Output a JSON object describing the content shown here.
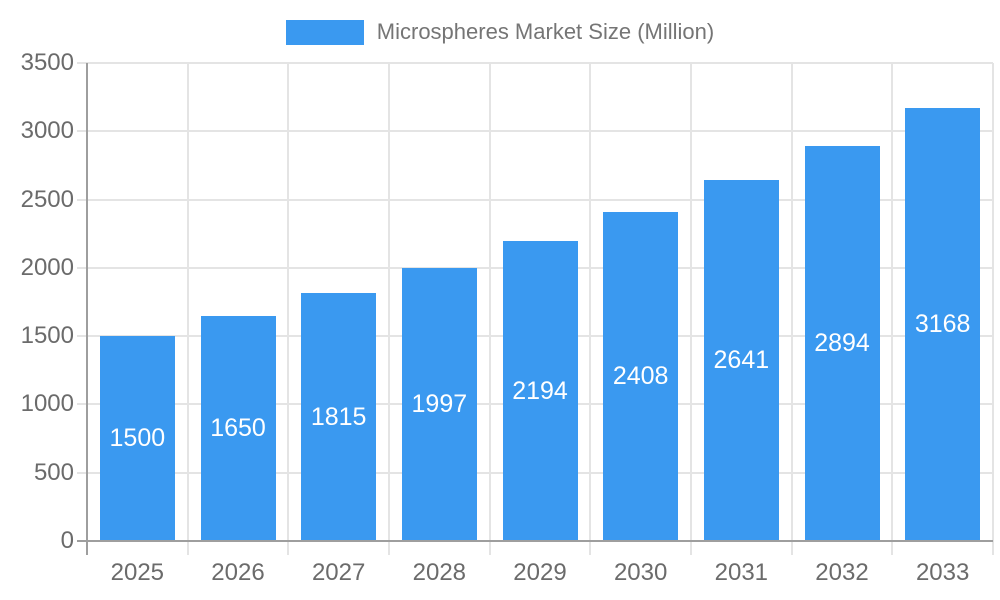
{
  "legend": {
    "label": "Microspheres Market Size (Million)"
  },
  "colors": {
    "bar": "#3a99f0",
    "bar_label": "#ffffff",
    "axis_text": "#6b6b6b",
    "legend_text": "#757575",
    "grid_line": "#e4e4e4",
    "axis_line": "#9e9e9e",
    "background": "#ffffff"
  },
  "chart_data": {
    "type": "bar",
    "categories": [
      "2025",
      "2026",
      "2027",
      "2028",
      "2029",
      "2030",
      "2031",
      "2032",
      "2033"
    ],
    "values": [
      1500,
      1650,
      1815,
      1997,
      2194,
      2408,
      2641,
      2894,
      3168
    ],
    "title": "Microspheres Market Size (Million)",
    "series_name": "Microspheres Market Size (Million)",
    "xlabel": "",
    "ylabel": "",
    "ylim": [
      0,
      3500
    ],
    "ytick_step": 500,
    "grid": true,
    "legend_position": "top",
    "bar_value_labels": "inside-center"
  }
}
